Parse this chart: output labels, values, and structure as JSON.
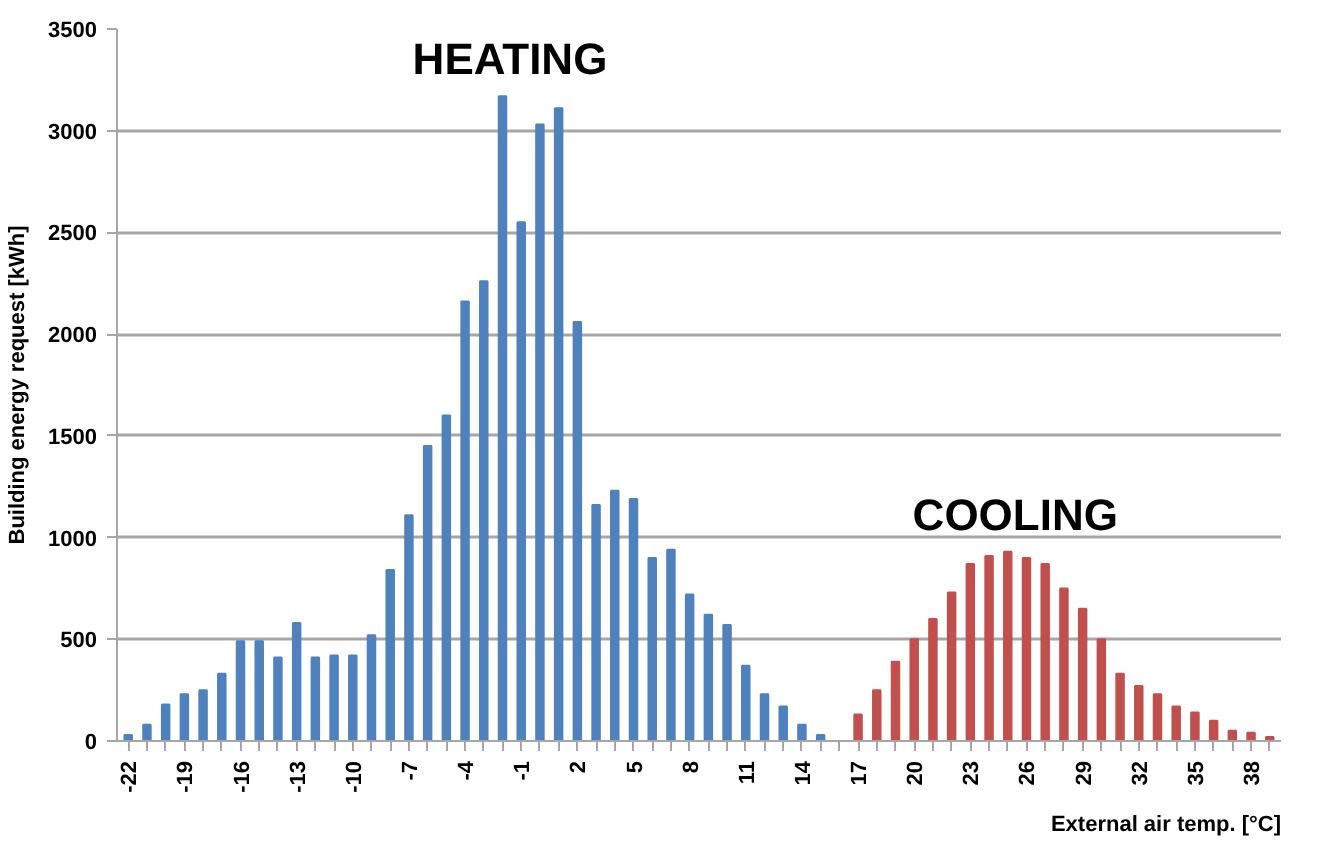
{
  "chart_data": {
    "type": "bar",
    "xlabel": "External air temp. [°C]",
    "ylabel": "Building energy request [kWh]",
    "categories": [
      "-22",
      null,
      null,
      "-19",
      null,
      null,
      "-16",
      null,
      null,
      "-13",
      null,
      null,
      "-10",
      null,
      null,
      "-7",
      null,
      null,
      "-4",
      null,
      null,
      "-1",
      null,
      null,
      "2",
      null,
      null,
      "5",
      null,
      null,
      "8",
      null,
      null,
      "11",
      null,
      null,
      "14",
      null,
      null,
      "17",
      null,
      null,
      "20",
      null,
      null,
      "23",
      null,
      null,
      "26",
      null,
      null,
      "29",
      null,
      null,
      "32",
      null,
      null,
      "35",
      null,
      null,
      "38",
      null
    ],
    "series": [
      {
        "name": "HEATING",
        "color": "#4f81bd",
        "values": [
          30,
          80,
          180,
          230,
          250,
          330,
          490,
          490,
          410,
          580,
          410,
          420,
          420,
          520,
          840,
          1110,
          1450,
          1600,
          2160,
          2260,
          3170,
          2550,
          3030,
          3110,
          2060,
          1160,
          1230,
          1190,
          900,
          940,
          720,
          620,
          570,
          370,
          230,
          170,
          80,
          30,
          0,
          null,
          null,
          null,
          null,
          null,
          null,
          null,
          null,
          null,
          null,
          null,
          null,
          null,
          null,
          null,
          null,
          null,
          null,
          null,
          null,
          null,
          null,
          null
        ]
      },
      {
        "name": "COOLING",
        "color": "#c0504d",
        "values": [
          null,
          null,
          null,
          null,
          null,
          null,
          null,
          null,
          null,
          null,
          null,
          null,
          null,
          null,
          null,
          null,
          null,
          null,
          null,
          null,
          null,
          null,
          null,
          null,
          null,
          null,
          null,
          null,
          null,
          null,
          null,
          null,
          null,
          null,
          null,
          null,
          null,
          null,
          null,
          130,
          250,
          390,
          500,
          600,
          730,
          870,
          910,
          930,
          900,
          870,
          750,
          650,
          500,
          330,
          270,
          230,
          170,
          140,
          100,
          50,
          40,
          20
        ]
      }
    ],
    "ylim": [
      0,
      3500
    ],
    "yticks": [
      0,
      500,
      1000,
      1500,
      2000,
      2500,
      3000,
      3500
    ],
    "grid": "y"
  }
}
